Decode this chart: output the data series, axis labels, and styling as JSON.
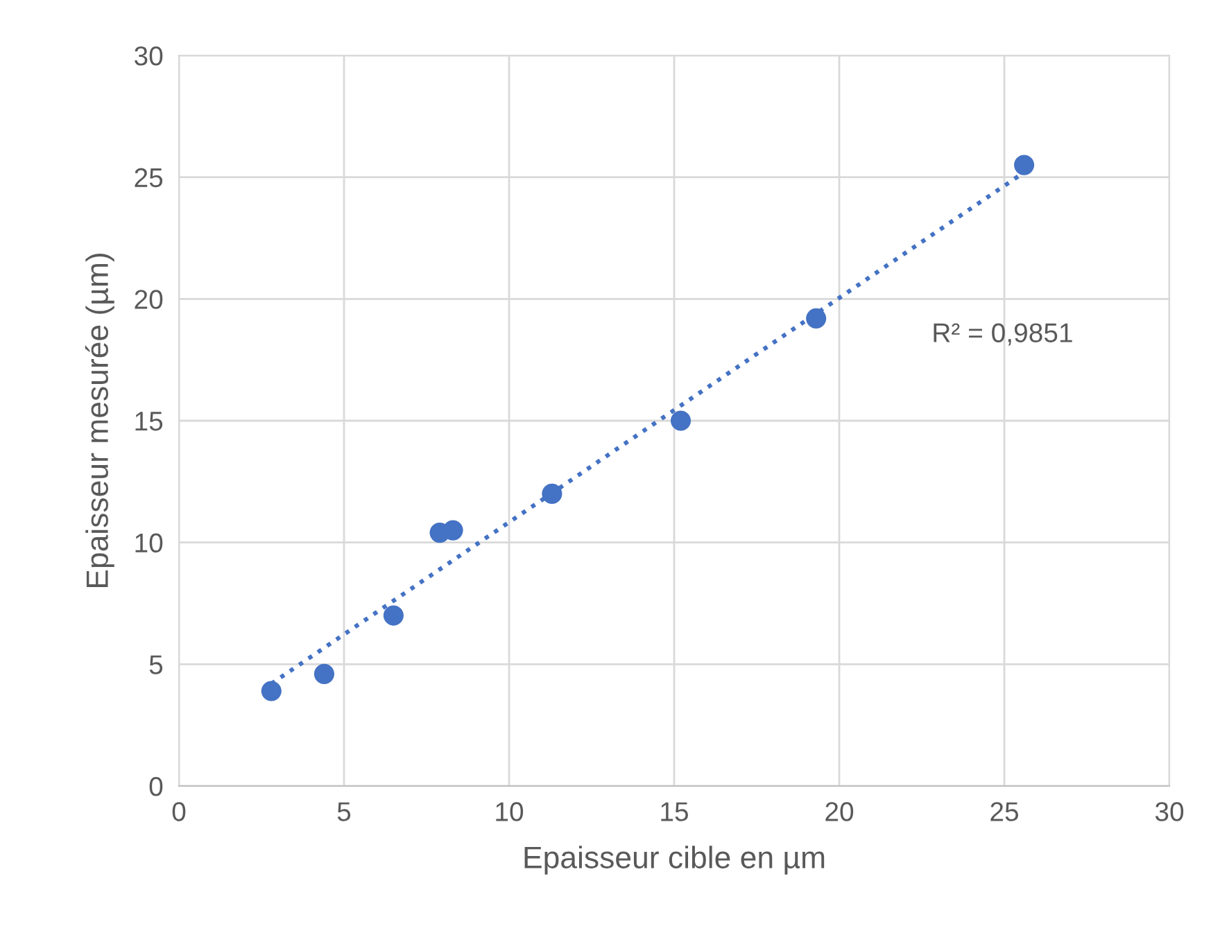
{
  "chart_data": {
    "type": "scatter",
    "xlabel": "Epaisseur cible en µm",
    "ylabel": "Epaisseur mesurée (µm)",
    "xlim": [
      0,
      30
    ],
    "ylim": [
      0,
      30
    ],
    "xticks": [
      0,
      5,
      10,
      15,
      20,
      25,
      30
    ],
    "yticks": [
      0,
      5,
      10,
      15,
      20,
      25,
      30
    ],
    "grid": true,
    "marker": "circle",
    "series": [
      {
        "type": "scatter",
        "color": "#4472c4",
        "x": [
          2.8,
          4.4,
          6.5,
          7.9,
          8.3,
          11.3,
          15.2,
          19.3,
          25.6
        ],
        "values": [
          3.9,
          4.6,
          7.0,
          10.4,
          10.5,
          12.0,
          15.0,
          19.2,
          25.5
        ]
      },
      {
        "type": "line",
        "color": "#4472c4",
        "line_style": "dotted",
        "marker": "none",
        "x": [
          2.8,
          25.6
        ],
        "values": [
          4.2,
          25.2
        ]
      }
    ],
    "annotations": [
      "R² = 0,9851"
    ]
  }
}
